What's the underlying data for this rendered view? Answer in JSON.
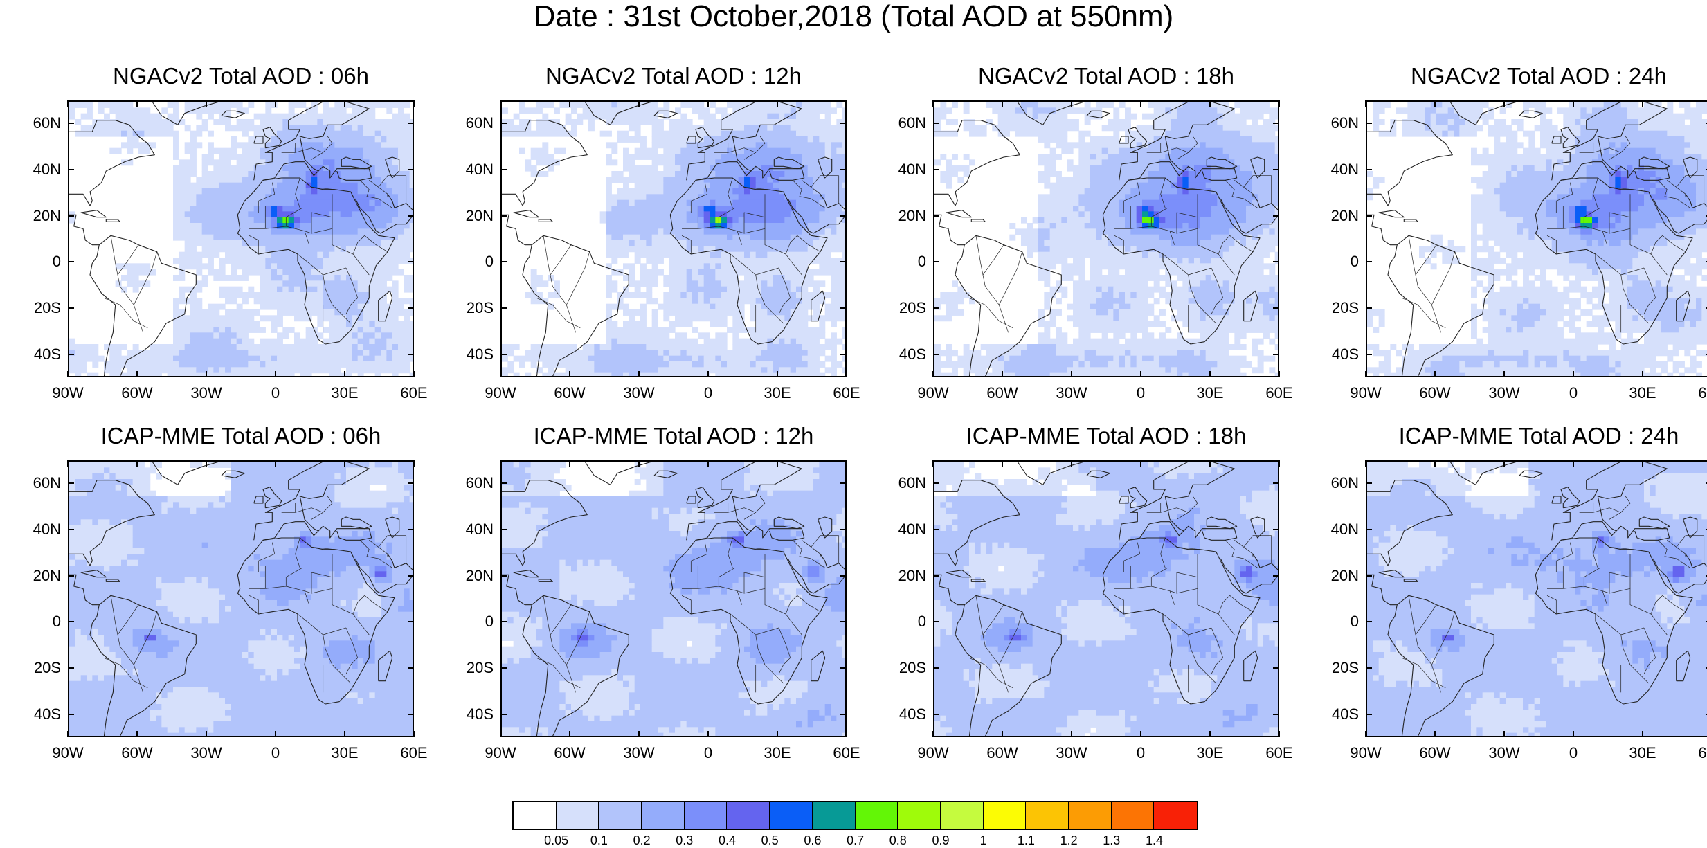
{
  "title": "Date : 31st October,2018 (Total AOD at 550nm)",
  "panels": [
    {
      "title": "NGACv2 Total AOD : 06h",
      "model": "ngac",
      "seed": 1
    },
    {
      "title": "NGACv2 Total AOD : 12h",
      "model": "ngac",
      "seed": 2
    },
    {
      "title": "NGACv2 Total AOD : 18h",
      "model": "ngac",
      "seed": 3
    },
    {
      "title": "NGACv2 Total AOD : 24h",
      "model": "ngac",
      "seed": 4
    },
    {
      "title": "ICAP-MME Total AOD : 06h",
      "model": "icap",
      "seed": 5
    },
    {
      "title": "ICAP-MME Total AOD : 12h",
      "model": "icap",
      "seed": 6
    },
    {
      "title": "ICAP-MME Total AOD : 18h",
      "model": "icap",
      "seed": 7
    },
    {
      "title": "ICAP-MME Total AOD : 24h",
      "model": "icap",
      "seed": 8
    }
  ],
  "map": {
    "lon_range": [
      -90,
      60
    ],
    "lat_range": [
      -50,
      70
    ],
    "lat_ticks": [
      "60N",
      "40N",
      "20N",
      "0",
      "20S",
      "40S"
    ],
    "lat_values": [
      60,
      40,
      20,
      0,
      -20,
      -40
    ],
    "lon_ticks": [
      "90W",
      "60W",
      "30W",
      "0",
      "30E",
      "60E"
    ],
    "lon_values": [
      -90,
      -60,
      -30,
      0,
      30,
      60
    ]
  },
  "colorbar": {
    "labels": [
      "0.05",
      "0.1",
      "0.2",
      "0.3",
      "0.4",
      "0.5",
      "0.6",
      "0.7",
      "0.8",
      "0.9",
      "1",
      "1.1",
      "1.2",
      "1.3",
      "1.4"
    ],
    "colors": [
      "#ffffff",
      "#d6e0fb",
      "#b2c4fb",
      "#94acfb",
      "#7b8ffa",
      "#6464ef",
      "#0a5ef7",
      "#079a96",
      "#63f606",
      "#9ffb0a",
      "#c5fb3e",
      "#fcfc04",
      "#fcc404",
      "#fc9c04",
      "#fc7404",
      "#f82106"
    ]
  }
}
